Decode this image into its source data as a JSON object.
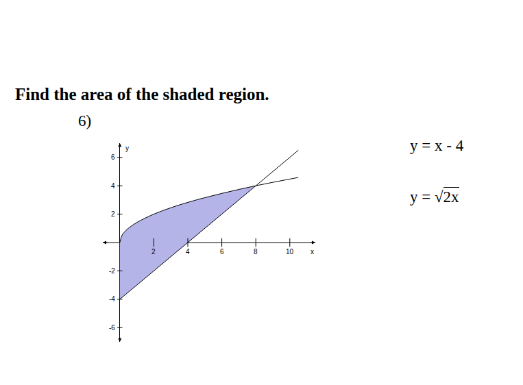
{
  "heading": "Find the area of the shaded region.",
  "problem_number": "6)",
  "chart_data": {
    "type": "line",
    "x_label": "x",
    "y_label": "y",
    "xlim": [
      -1,
      11.5
    ],
    "ylim": [
      -7,
      7
    ],
    "xticks": [
      2,
      4,
      6,
      8,
      10
    ],
    "yticks": [
      -6,
      -4,
      -2,
      2,
      4,
      6
    ],
    "grid": false,
    "series": [
      {
        "name": "y = x - 4",
        "color": "#000000",
        "x": [
          0,
          10.5
        ],
        "values": [
          -4,
          6.5
        ]
      },
      {
        "name": "y = √2x",
        "color": "#000000",
        "x": [
          0,
          0.125,
          0.25,
          0.5,
          1,
          2,
          3,
          4,
          5,
          6,
          7,
          8,
          9,
          10,
          10.5
        ],
        "values": [
          0,
          0.5,
          0.71,
          1,
          1.41,
          2,
          2.45,
          2.83,
          3.16,
          3.46,
          3.74,
          4,
          4.24,
          4.47,
          4.58
        ]
      }
    ],
    "shaded": {
      "color": "#b4b4e8",
      "x": [
        0,
        0.125,
        0.25,
        0.5,
        1,
        2,
        3,
        4,
        5,
        6,
        7,
        8
      ],
      "upper": [
        0,
        0.5,
        0.71,
        1,
        1.41,
        2,
        2.45,
        2.83,
        3.16,
        3.46,
        3.74,
        4
      ],
      "lower": [
        -4,
        -3.875,
        -3.75,
        -3.5,
        -3,
        -2,
        -1,
        0,
        1,
        2,
        3,
        4
      ]
    }
  }
}
